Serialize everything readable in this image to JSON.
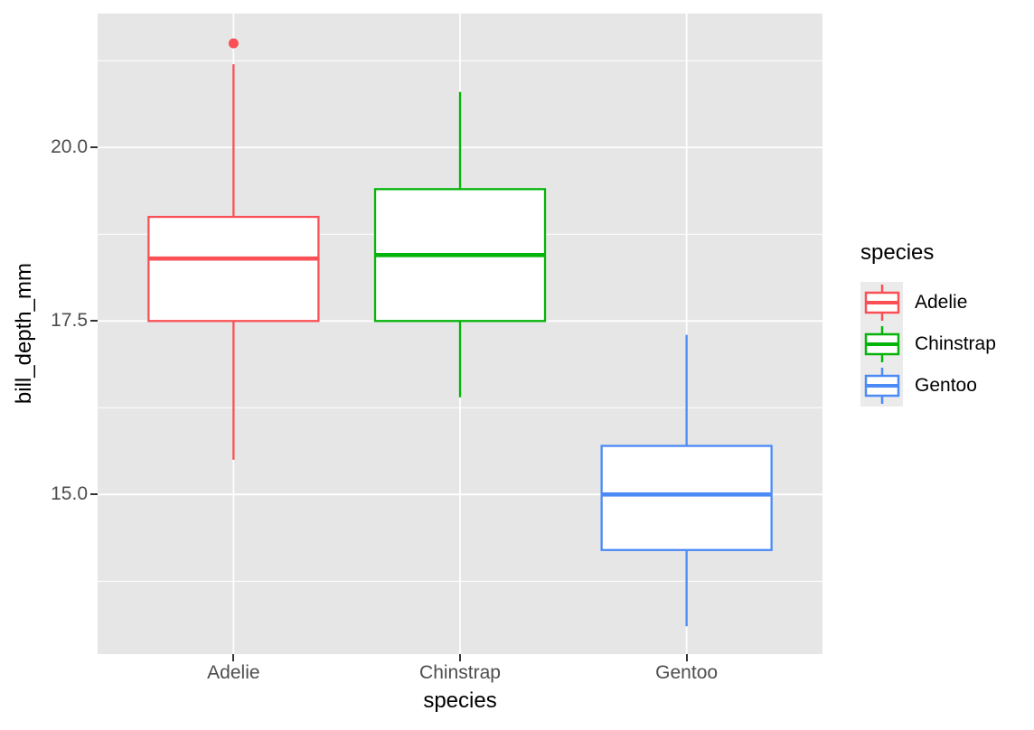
{
  "figure": {
    "background": "#FFFFFF",
    "panel_bg": "#E6E6E6",
    "grid_color": "#FFFFFF",
    "tick_label_color": "#4D4D4D",
    "axis_tick_color": "#333333",
    "legend_key_bg": "#EBEBEB"
  },
  "chart_data": {
    "type": "boxplot",
    "title": "",
    "xlabel": "species",
    "ylabel": "bill_depth_mm",
    "categories": [
      "Adelie",
      "Chinstrap",
      "Gentoo"
    ],
    "y_ticks": [
      15.0,
      17.5,
      20.0
    ],
    "y_tick_labels": [
      "15.0",
      "17.5",
      "20.0"
    ],
    "y_minor_ticks": [
      13.75,
      16.25,
      18.75,
      21.25
    ],
    "ylim": [
      12.7,
      21.93
    ],
    "grid": true,
    "series": [
      {
        "name": "Adelie",
        "color": "#FA5055",
        "whisker_low": 15.5,
        "q1": 17.5,
        "median": 18.4,
        "q3": 19.0,
        "whisker_high": 21.2,
        "outliers": [
          21.5
        ]
      },
      {
        "name": "Chinstrap",
        "color": "#04B408",
        "whisker_low": 16.4,
        "q1": 17.5,
        "median": 18.45,
        "q3": 19.4,
        "whisker_high": 20.8,
        "outliers": []
      },
      {
        "name": "Gentoo",
        "color": "#4C8AF5",
        "whisker_low": 13.1,
        "q1": 14.2,
        "median": 15.0,
        "q3": 15.7,
        "whisker_high": 17.3,
        "outliers": []
      }
    ],
    "legend": {
      "title": "species",
      "position": "right"
    }
  }
}
